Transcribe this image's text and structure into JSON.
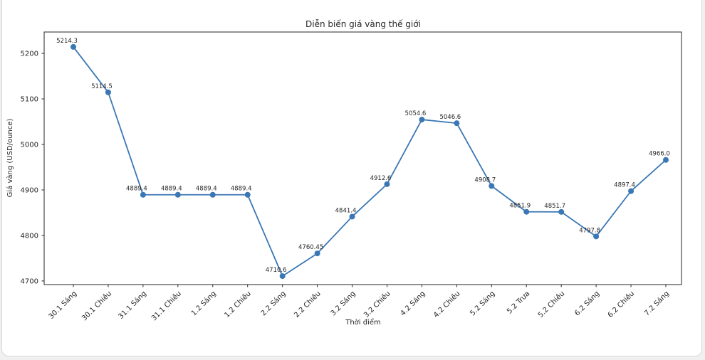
{
  "page": {
    "background_color": "#f0f0f0",
    "card_background": "#ffffff",
    "card_border_color": "#d8d8d8"
  },
  "chart_data": {
    "type": "line",
    "title": "Diễn biến giá vàng thế giới",
    "xlabel": "Thời điểm",
    "ylabel": "Giá vàng (USD/ounce)",
    "categories": [
      "30.1 Sáng",
      "30.1 Chiều",
      "31.1 Sáng",
      "31.1 Chiều",
      "1.2 Sáng",
      "1.2 Chiều",
      "2.2 Sáng",
      "2.2 Chiều",
      "3.2 Sáng",
      "3.2 Chiều",
      "4.2 Sáng",
      "4.2 Chiều",
      "5.2 Sáng",
      "5.2 Trưa",
      "5.2 Chiều",
      "6.2 Sáng",
      "6.2 Chiều",
      "7.2 Sáng"
    ],
    "values": [
      5214.3,
      5114.5,
      4889.4,
      4889.4,
      4889.4,
      4889.4,
      4710.6,
      4760.45,
      4841.4,
      4912.6,
      5054.6,
      5046.6,
      4908.7,
      4851.9,
      4851.7,
      4797.8,
      4897.4,
      4966.0
    ],
    "point_labels": [
      "5214.3",
      "5114.5",
      "4889.4",
      "4889.4",
      "4889.4",
      "4889.4",
      "4710.6",
      "4760.45",
      "4841.4",
      "4912.6",
      "5054.6",
      "5046.6",
      "4908.7",
      "4851.9",
      "4851.7",
      "4797.8",
      "4897.4",
      "4966.0"
    ],
    "yticks": [
      4700,
      4800,
      4900,
      5000,
      5100,
      5200
    ],
    "ylim": [
      4692,
      5247
    ],
    "x_tick_rotation_deg": 45,
    "grid": false,
    "legend_position": "none",
    "line_color": "#3a77b4",
    "marker_color": "#3a77b4",
    "axis_color": "#262626"
  }
}
